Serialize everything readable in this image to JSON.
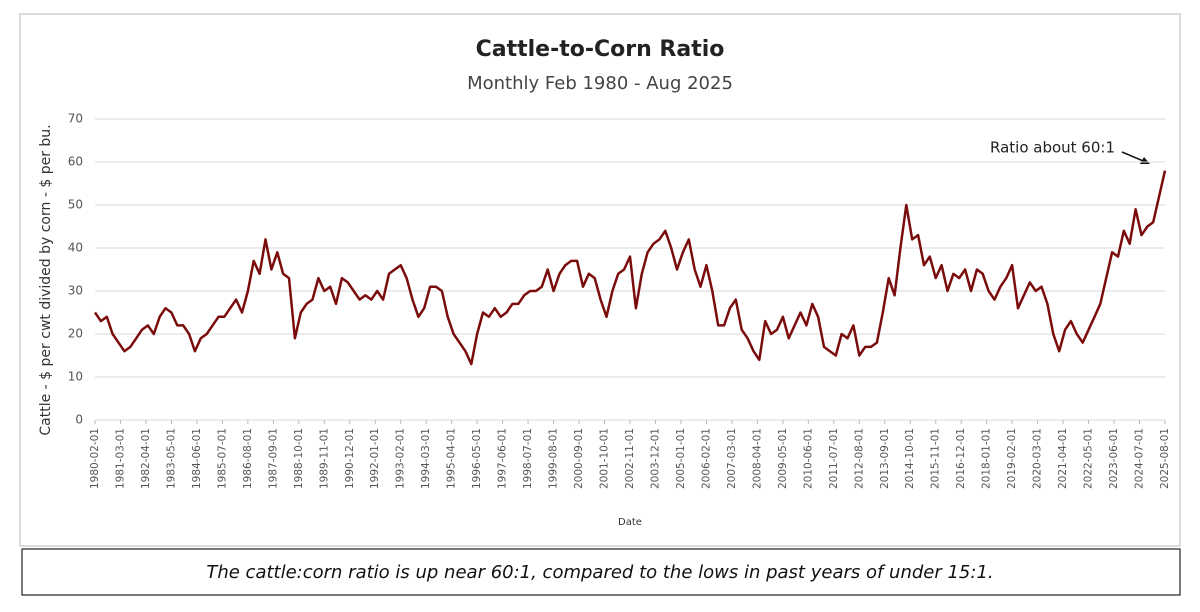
{
  "chart_data": {
    "type": "line",
    "title": "Cattle-to-Corn Ratio",
    "subtitle": "Monthly Feb 1980 - Aug 2025",
    "x_label": "Date",
    "y_label": "Cattle - $ per cwt divided by corn - $ per bu.",
    "annotation": "Ratio about 60:1",
    "caption": "The cattle:corn ratio is up near 60:1, compared to the lows in past years of under 15:1.",
    "grid": true,
    "xlim": [
      "1980-02-01",
      "2025-08-01"
    ],
    "ylim": [
      0,
      70
    ],
    "yticks": [
      0,
      10,
      20,
      30,
      40,
      50,
      60,
      70
    ],
    "xticks": [
      "1980-02-01",
      "1981-03-01",
      "1982-04-01",
      "1983-05-01",
      "1984-06-01",
      "1985-07-01",
      "1986-08-01",
      "1987-09-01",
      "1988-10-01",
      "1989-11-01",
      "1990-12-01",
      "1992-01-01",
      "1993-02-01",
      "1994-03-01",
      "1995-04-01",
      "1996-05-01",
      "1997-06-01",
      "1998-07-01",
      "1999-08-01",
      "2000-09-01",
      "2001-10-01",
      "2002-11-01",
      "2003-12-01",
      "2005-01-01",
      "2006-02-01",
      "2007-03-01",
      "2008-04-01",
      "2009-05-01",
      "2010-06-01",
      "2011-07-01",
      "2012-08-01",
      "2013-09-01",
      "2014-10-01",
      "2015-11-01",
      "2016-12-01",
      "2018-01-01",
      "2019-02-01",
      "2020-03-01",
      "2021-04-01",
      "2022-05-01",
      "2023-06-01",
      "2024-07-01",
      "2025-08-01"
    ],
    "x": [
      "1980-02-01",
      "1980-05-01",
      "1980-08-01",
      "1980-11-01",
      "1981-02-01",
      "1981-05-01",
      "1981-08-01",
      "1981-11-01",
      "1982-02-01",
      "1982-05-01",
      "1982-08-01",
      "1982-11-01",
      "1983-02-01",
      "1983-05-01",
      "1983-08-01",
      "1983-11-01",
      "1984-02-01",
      "1984-05-01",
      "1984-08-01",
      "1984-11-01",
      "1985-02-01",
      "1985-05-01",
      "1985-08-01",
      "1985-11-01",
      "1986-02-01",
      "1986-05-01",
      "1986-08-01",
      "1986-11-01",
      "1987-02-01",
      "1987-05-01",
      "1987-08-01",
      "1987-11-01",
      "1988-02-01",
      "1988-05-01",
      "1988-08-01",
      "1988-11-01",
      "1989-02-01",
      "1989-05-01",
      "1989-08-01",
      "1989-11-01",
      "1990-02-01",
      "1990-05-01",
      "1990-08-01",
      "1990-11-01",
      "1991-02-01",
      "1991-05-01",
      "1991-08-01",
      "1991-11-01",
      "1992-02-01",
      "1992-05-01",
      "1992-08-01",
      "1992-11-01",
      "1993-02-01",
      "1993-05-01",
      "1993-08-01",
      "1993-11-01",
      "1994-02-01",
      "1994-05-01",
      "1994-08-01",
      "1994-11-01",
      "1995-02-01",
      "1995-05-01",
      "1995-08-01",
      "1995-11-01",
      "1996-02-01",
      "1996-05-01",
      "1996-08-01",
      "1996-11-01",
      "1997-02-01",
      "1997-05-01",
      "1997-08-01",
      "1997-11-01",
      "1998-02-01",
      "1998-05-01",
      "1998-08-01",
      "1998-11-01",
      "1999-02-01",
      "1999-05-01",
      "1999-08-01",
      "1999-11-01",
      "2000-02-01",
      "2000-05-01",
      "2000-08-01",
      "2000-11-01",
      "2001-02-01",
      "2001-05-01",
      "2001-08-01",
      "2001-11-01",
      "2002-02-01",
      "2002-05-01",
      "2002-08-01",
      "2002-11-01",
      "2003-02-01",
      "2003-05-01",
      "2003-08-01",
      "2003-11-01",
      "2004-02-01",
      "2004-05-01",
      "2004-08-01",
      "2004-11-01",
      "2005-02-01",
      "2005-05-01",
      "2005-08-01",
      "2005-11-01",
      "2006-02-01",
      "2006-05-01",
      "2006-08-01",
      "2006-11-01",
      "2007-02-01",
      "2007-05-01",
      "2007-08-01",
      "2007-11-01",
      "2008-02-01",
      "2008-05-01",
      "2008-08-01",
      "2008-11-01",
      "2009-02-01",
      "2009-05-01",
      "2009-08-01",
      "2009-11-01",
      "2010-02-01",
      "2010-05-01",
      "2010-08-01",
      "2010-11-01",
      "2011-02-01",
      "2011-05-01",
      "2011-08-01",
      "2011-11-01",
      "2012-02-01",
      "2012-05-01",
      "2012-08-01",
      "2012-11-01",
      "2013-02-01",
      "2013-05-01",
      "2013-08-01",
      "2013-11-01",
      "2014-02-01",
      "2014-05-01",
      "2014-08-01",
      "2014-11-01",
      "2015-02-01",
      "2015-05-01",
      "2015-08-01",
      "2015-11-01",
      "2016-02-01",
      "2016-05-01",
      "2016-08-01",
      "2016-11-01",
      "2017-02-01",
      "2017-05-01",
      "2017-08-01",
      "2017-11-01",
      "2018-02-01",
      "2018-05-01",
      "2018-08-01",
      "2018-11-01",
      "2019-02-01",
      "2019-05-01",
      "2019-08-01",
      "2019-11-01",
      "2020-02-01",
      "2020-05-01",
      "2020-08-01",
      "2020-11-01",
      "2021-02-01",
      "2021-05-01",
      "2021-08-01",
      "2021-11-01",
      "2022-02-01",
      "2022-05-01",
      "2022-08-01",
      "2022-11-01",
      "2023-02-01",
      "2023-05-01",
      "2023-08-01",
      "2023-11-01",
      "2024-02-01",
      "2024-05-01",
      "2024-08-01",
      "2024-11-01",
      "2025-02-01",
      "2025-05-01",
      "2025-08-01"
    ],
    "series": [
      {
        "name": "Cattle-to-Corn Ratio",
        "color": "#7b0c0c",
        "values": [
          25,
          23,
          24,
          20,
          18,
          16,
          17,
          19,
          21,
          22,
          20,
          24,
          26,
          25,
          22,
          22,
          20,
          16,
          19,
          20,
          22,
          24,
          24,
          26,
          28,
          25,
          30,
          37,
          34,
          42,
          35,
          39,
          34,
          33,
          19,
          25,
          27,
          28,
          33,
          30,
          31,
          27,
          33,
          32,
          30,
          28,
          29,
          28,
          30,
          28,
          34,
          35,
          36,
          33,
          28,
          24,
          26,
          31,
          31,
          30,
          24,
          20,
          18,
          16,
          13,
          20,
          25,
          24,
          26,
          24,
          25,
          27,
          27,
          29,
          30,
          30,
          31,
          35,
          30,
          34,
          36,
          37,
          37,
          31,
          34,
          33,
          28,
          24,
          30,
          34,
          35,
          38,
          26,
          34,
          39,
          41,
          42,
          44,
          40,
          35,
          39,
          42,
          35,
          31,
          36,
          30,
          22,
          22,
          26,
          28,
          21,
          19,
          16,
          14,
          23,
          20,
          21,
          24,
          19,
          22,
          25,
          22,
          27,
          24,
          17,
          16,
          15,
          20,
          19,
          22,
          15,
          17,
          17,
          18,
          25,
          33,
          29,
          40,
          50,
          42,
          43,
          36,
          38,
          33,
          36,
          30,
          34,
          33,
          35,
          30,
          35,
          34,
          30,
          28,
          31,
          33,
          36,
          26,
          29,
          32,
          30,
          31,
          27,
          20,
          16,
          21,
          23,
          20,
          18,
          21,
          24,
          27,
          33,
          39,
          38,
          44,
          41,
          49,
          43,
          45,
          46,
          52,
          58
        ]
      }
    ]
  }
}
